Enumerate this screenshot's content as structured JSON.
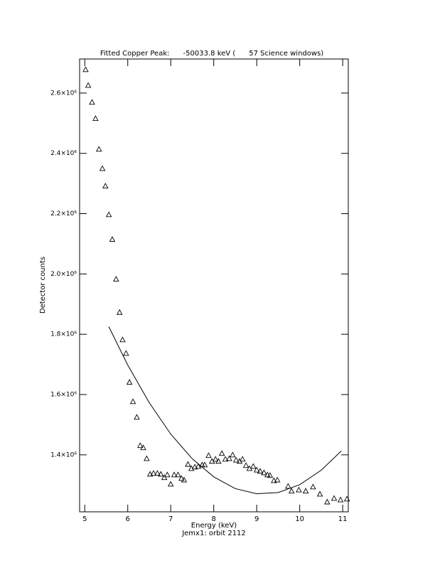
{
  "chart_data": {
    "type": "scatter",
    "title": "Fitted Copper Peak:      -50033.8 keV (      57 Science windows)",
    "x_label": "Energy (keV)",
    "y_label": "Detector counts",
    "subtitle": "Jemx1: orbit 2112",
    "xlim": [
      4.88,
      11.13
    ],
    "ylim": [
      1211000,
      2713000
    ],
    "xticks": [
      5,
      6,
      7,
      8,
      9,
      10,
      11
    ],
    "yticks": [
      {
        "value": 1400000,
        "label": "1.4×10⁶"
      },
      {
        "value": 1600000,
        "label": "1.6×10⁶"
      },
      {
        "value": 1800000,
        "label": "1.8×10⁶"
      },
      {
        "value": 2000000,
        "label": "2.0×10⁶"
      },
      {
        "value": 2200000,
        "label": "2.2×10⁶"
      },
      {
        "value": 2400000,
        "label": "2.4×10⁶"
      },
      {
        "value": 2600000,
        "label": "2.6×10⁶"
      }
    ],
    "series": [
      {
        "marker": "triangle",
        "color": "#000000",
        "x": [
          5.02,
          5.08,
          5.17,
          5.25,
          5.33,
          5.41,
          5.48,
          5.56,
          5.64,
          5.73,
          5.81,
          5.88,
          5.96,
          6.04,
          6.12,
          6.21,
          6.29,
          6.36,
          6.44,
          6.52,
          6.6,
          6.69,
          6.77,
          6.85,
          6.92,
          7.0,
          7.08,
          7.17,
          7.25,
          7.31,
          7.4,
          7.48,
          7.56,
          7.64,
          7.73,
          7.79,
          7.88,
          7.96,
          8.04,
          8.11,
          8.19,
          8.27,
          8.36,
          8.44,
          8.52,
          8.6,
          8.67,
          8.75,
          8.83,
          8.92,
          9.0,
          9.08,
          9.17,
          9.25,
          9.31,
          9.4,
          9.48,
          9.73,
          9.81,
          9.98,
          10.14,
          10.31,
          10.47,
          10.64,
          10.8,
          10.95,
          11.1
        ],
        "values": [
          2678000,
          2626000,
          2570000,
          2516000,
          2414000,
          2350000,
          2292000,
          2197000,
          2115000,
          1983000,
          1873000,
          1782000,
          1737000,
          1641000,
          1577000,
          1525000,
          1431000,
          1424000,
          1388000,
          1336000,
          1339000,
          1339000,
          1336000,
          1325000,
          1334000,
          1303000,
          1334000,
          1334000,
          1322000,
          1317000,
          1369000,
          1355000,
          1360000,
          1362000,
          1367000,
          1367000,
          1398000,
          1379000,
          1386000,
          1379000,
          1405000,
          1386000,
          1388000,
          1400000,
          1383000,
          1379000,
          1386000,
          1365000,
          1355000,
          1362000,
          1350000,
          1346000,
          1341000,
          1334000,
          1332000,
          1315000,
          1317000,
          1296000,
          1280000,
          1284000,
          1280000,
          1294000,
          1270000,
          1244000,
          1256000,
          1251000,
          1254000
        ]
      },
      {
        "marker": "line",
        "color": "#000000",
        "x": [
          5.56,
          6.0,
          6.5,
          7.0,
          7.5,
          8.0,
          8.5,
          9.0,
          9.5,
          10.0,
          10.5,
          10.97
        ],
        "values": [
          1825000,
          1698000,
          1573000,
          1469000,
          1387000,
          1327000,
          1288000,
          1271000,
          1275000,
          1301000,
          1349000,
          1413000
        ]
      }
    ]
  }
}
